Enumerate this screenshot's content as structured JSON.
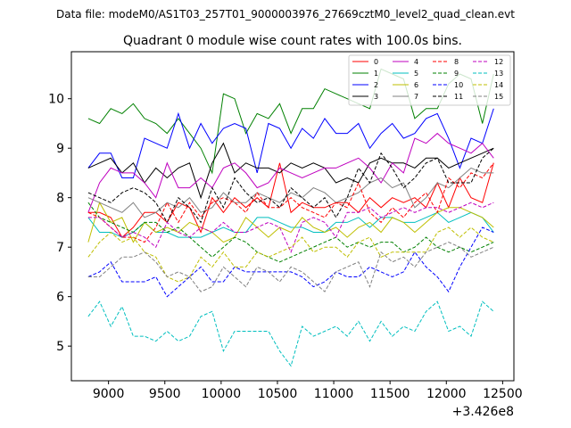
{
  "header": {
    "suptitle": "Data file: modeM0/AS1T03_257T01_9000003976_27669cztM0_level2_quad_clean.evt"
  },
  "chart_data": {
    "type": "line",
    "title": "Quadrant 0 module wise count rates with 100.0s bins.",
    "xlabel": "",
    "ylabel": "",
    "x_offset_label": "+3.426e8",
    "xlim": [
      8670,
      12600
    ],
    "ylim": [
      4.3,
      10.95
    ],
    "xticks": [
      9000,
      9500,
      10000,
      10500,
      11000,
      11500,
      12000,
      12500
    ],
    "yticks": [
      5,
      6,
      7,
      8,
      9,
      10
    ],
    "legend_position": "top-right",
    "x": [
      8820,
      8920,
      9020,
      9120,
      9220,
      9320,
      9420,
      9520,
      9620,
      9720,
      9820,
      9920,
      10020,
      10120,
      10220,
      10320,
      10420,
      10520,
      10620,
      10720,
      10820,
      10920,
      11020,
      11120,
      11220,
      11320,
      11420,
      11520,
      11620,
      11720,
      11820,
      11920,
      12020,
      12120,
      12220,
      12320,
      12420
    ],
    "series": [
      {
        "name": "0",
        "color": "#ff0000",
        "dash": "solid",
        "values": [
          7.7,
          7.7,
          7.6,
          7.2,
          7.4,
          7.7,
          7.7,
          7.5,
          7.9,
          7.8,
          7.3,
          8.0,
          7.7,
          8.0,
          7.8,
          8.0,
          7.8,
          8.7,
          7.7,
          7.9,
          7.8,
          7.8,
          7.9,
          7.9,
          7.7,
          8.0,
          7.8,
          8.0,
          7.9,
          8.0,
          7.8,
          8.3,
          7.8,
          8.4,
          8.0,
          7.9,
          8.7
        ]
      },
      {
        "name": "1",
        "color": "#008000",
        "dash": "solid",
        "values": [
          9.6,
          9.5,
          9.8,
          9.7,
          9.9,
          9.6,
          9.5,
          9.3,
          9.6,
          9.3,
          9.0,
          8.5,
          10.1,
          10.0,
          9.3,
          9.7,
          9.6,
          9.9,
          9.3,
          9.8,
          9.8,
          10.2,
          10.1,
          10.0,
          9.9,
          9.8,
          10.6,
          10.5,
          10.4,
          9.6,
          9.8,
          9.8,
          10.3,
          10.5,
          10.4,
          9.5,
          10.5
        ]
      },
      {
        "name": "2",
        "color": "#0000ff",
        "dash": "solid",
        "values": [
          8.6,
          8.9,
          8.9,
          8.4,
          8.4,
          9.2,
          9.1,
          9.0,
          9.7,
          9.0,
          9.5,
          9.1,
          9.4,
          9.5,
          9.4,
          8.5,
          9.5,
          9.4,
          9.0,
          9.4,
          9.2,
          9.6,
          9.3,
          9.3,
          9.5,
          9.0,
          9.3,
          9.5,
          9.2,
          9.3,
          9.6,
          9.7,
          9.2,
          8.6,
          9.2,
          9.1,
          9.8
        ]
      },
      {
        "name": "3",
        "color": "#000000",
        "dash": "solid",
        "values": [
          8.6,
          8.7,
          8.8,
          8.5,
          8.7,
          8.3,
          8.6,
          8.4,
          8.6,
          8.7,
          8.0,
          8.7,
          9.1,
          8.5,
          8.7,
          8.6,
          8.6,
          8.5,
          8.7,
          8.6,
          8.7,
          8.6,
          8.3,
          8.4,
          8.3,
          8.7,
          8.8,
          8.7,
          8.7,
          8.6,
          8.8,
          8.8,
          8.6,
          8.7,
          8.8,
          8.9,
          9.0
        ]
      },
      {
        "name": "4",
        "color": "#bf00bf",
        "dash": "solid",
        "values": [
          7.7,
          8.3,
          8.6,
          8.5,
          8.5,
          8.3,
          8.0,
          8.7,
          8.2,
          8.2,
          8.4,
          8.2,
          8.6,
          8.7,
          8.5,
          8.2,
          8.3,
          8.6,
          8.5,
          8.4,
          8.5,
          8.6,
          8.6,
          8.7,
          8.8,
          8.6,
          8.3,
          8.7,
          8.5,
          9.2,
          9.1,
          9.3,
          9.1,
          9.0,
          8.9,
          9.1,
          8.8
        ]
      },
      {
        "name": "5",
        "color": "#00bfbf",
        "dash": "solid",
        "values": [
          7.6,
          7.3,
          7.3,
          7.2,
          7.3,
          7.5,
          7.3,
          7.3,
          7.2,
          7.2,
          7.2,
          7.3,
          7.4,
          7.3,
          7.3,
          7.6,
          7.6,
          7.5,
          7.4,
          7.4,
          7.3,
          7.3,
          7.5,
          7.5,
          7.6,
          7.4,
          7.6,
          7.6,
          7.5,
          7.5,
          7.6,
          7.7,
          7.5,
          7.6,
          7.7,
          7.6,
          7.3
        ]
      },
      {
        "name": "6",
        "color": "#bfbf00",
        "dash": "solid",
        "values": [
          7.1,
          7.9,
          7.5,
          7.6,
          7.1,
          7.5,
          7.3,
          7.4,
          7.3,
          7.5,
          7.4,
          7.3,
          7.1,
          7.2,
          7.6,
          7.4,
          7.2,
          7.4,
          7.3,
          7.6,
          7.4,
          7.3,
          7.4,
          7.2,
          7.4,
          7.5,
          7.3,
          7.6,
          7.5,
          7.3,
          7.5,
          7.7,
          7.8,
          7.8,
          7.7,
          7.6,
          7.4
        ]
      },
      {
        "name": "7",
        "color": "#808080",
        "dash": "solid",
        "values": [
          8.0,
          7.9,
          7.8,
          7.7,
          7.9,
          7.6,
          7.7,
          7.9,
          7.8,
          8.0,
          7.7,
          7.8,
          8.1,
          7.9,
          7.9,
          8.1,
          8.0,
          7.9,
          8.1,
          8.0,
          8.2,
          8.1,
          7.9,
          8.0,
          8.1,
          8.3,
          8.4,
          8.2,
          8.3,
          7.8,
          8.0,
          8.3,
          8.2,
          8.4,
          8.6,
          8.5,
          8.5
        ]
      },
      {
        "name": "8",
        "color": "#ff0000",
        "dash": "dashed",
        "values": [
          7.7,
          7.6,
          7.4,
          7.2,
          7.2,
          7.1,
          7.4,
          7.9,
          7.5,
          7.9,
          7.6,
          7.9,
          8.0,
          7.9,
          7.7,
          8.1,
          7.8,
          7.8,
          8.0,
          7.8,
          7.7,
          7.6,
          7.9,
          7.8,
          8.3,
          7.7,
          7.5,
          7.8,
          7.6,
          7.9,
          8.1,
          7.7,
          8.4,
          8.2,
          8.5,
          8.4,
          8.7
        ]
      },
      {
        "name": "9",
        "color": "#008000",
        "dash": "dashed",
        "values": [
          7.9,
          7.6,
          7.5,
          7.4,
          7.3,
          7.5,
          7.5,
          7.3,
          7.4,
          7.2,
          7.0,
          6.8,
          7.0,
          7.2,
          7.1,
          6.9,
          6.8,
          6.7,
          6.8,
          6.9,
          7.0,
          7.1,
          7.2,
          7.0,
          7.1,
          7.0,
          7.1,
          7.1,
          6.9,
          7.0,
          7.2,
          7.0,
          6.9,
          7.0,
          6.9,
          7.0,
          7.1
        ]
      },
      {
        "name": "10",
        "color": "#0000ff",
        "dash": "dashed",
        "values": [
          6.4,
          6.5,
          6.7,
          6.3,
          6.3,
          6.3,
          6.4,
          6.0,
          6.2,
          6.4,
          6.6,
          6.3,
          6.3,
          6.6,
          6.5,
          6.5,
          6.5,
          6.5,
          6.5,
          6.4,
          6.2,
          6.3,
          6.5,
          6.4,
          6.4,
          6.6,
          6.5,
          6.4,
          6.5,
          6.9,
          6.6,
          6.4,
          6.1,
          6.6,
          7.0,
          7.4,
          7.3
        ]
      },
      {
        "name": "11",
        "color": "#000000",
        "dash": "dashed",
        "values": [
          8.1,
          8.0,
          7.9,
          8.1,
          8.2,
          8.1,
          7.9,
          7.5,
          8.0,
          7.8,
          7.5,
          8.2,
          7.8,
          8.4,
          8.1,
          7.9,
          8.0,
          7.8,
          8.2,
          8.0,
          7.8,
          8.0,
          7.6,
          8.0,
          8.6,
          8.3,
          8.9,
          8.6,
          8.2,
          8.4,
          8.7,
          8.8,
          8.3,
          8.3,
          8.3,
          8.8,
          9.0
        ]
      },
      {
        "name": "12",
        "color": "#bf00bf",
        "dash": "dashed",
        "values": [
          7.6,
          7.6,
          7.4,
          7.2,
          7.3,
          7.2,
          7.0,
          7.5,
          7.3,
          7.2,
          7.4,
          7.3,
          7.5,
          7.3,
          7.3,
          7.4,
          7.5,
          7.4,
          6.9,
          7.5,
          7.6,
          7.5,
          7.2,
          7.7,
          7.7,
          7.8,
          7.6,
          7.7,
          7.8,
          7.7,
          7.8,
          7.8,
          7.7,
          7.8,
          7.9,
          7.8,
          7.9
        ]
      },
      {
        "name": "13",
        "color": "#00bfbf",
        "dash": "dashed",
        "values": [
          5.6,
          5.9,
          5.4,
          5.8,
          5.2,
          5.2,
          5.1,
          5.3,
          5.1,
          5.2,
          5.6,
          5.7,
          4.9,
          5.3,
          5.3,
          5.3,
          5.3,
          4.9,
          4.6,
          5.4,
          5.2,
          5.3,
          5.4,
          5.2,
          5.5,
          5.1,
          5.5,
          5.2,
          5.4,
          5.3,
          5.7,
          5.9,
          5.3,
          5.4,
          5.2,
          5.9,
          5.7
        ]
      },
      {
        "name": "14",
        "color": "#bfbf00",
        "dash": "dashed",
        "values": [
          6.8,
          7.1,
          7.3,
          7.1,
          7.2,
          6.9,
          6.8,
          6.4,
          6.3,
          6.4,
          6.8,
          6.6,
          6.9,
          6.6,
          6.6,
          6.9,
          6.8,
          6.9,
          7.0,
          7.2,
          6.9,
          7.0,
          7.0,
          6.8,
          7.1,
          7.2,
          6.8,
          6.9,
          6.9,
          6.9,
          6.9,
          7.3,
          7.4,
          7.2,
          7.4,
          7.2,
          7.1
        ]
      },
      {
        "name": "15",
        "color": "#808080",
        "dash": "dashed",
        "values": [
          6.4,
          6.4,
          6.6,
          6.8,
          6.8,
          6.9,
          6.7,
          6.4,
          6.5,
          6.4,
          6.1,
          6.2,
          6.6,
          6.4,
          6.2,
          6.6,
          6.5,
          6.3,
          6.6,
          6.5,
          6.3,
          6.1,
          6.5,
          6.6,
          6.7,
          6.2,
          6.9,
          6.7,
          6.8,
          6.6,
          6.9,
          7.0,
          7.1,
          7.0,
          6.8,
          6.9,
          7.0
        ]
      }
    ]
  }
}
